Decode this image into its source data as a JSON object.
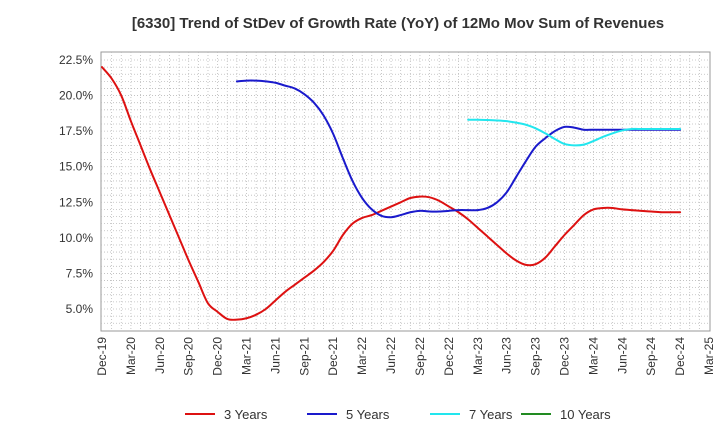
{
  "chart_data": {
    "type": "line",
    "title": "[6330]  Trend of StDev of Growth Rate (YoY) of 12Mo Mov Sum of Revenues",
    "xlabel": "",
    "ylabel": "",
    "ylim": [
      3.6,
      22.5
    ],
    "y_ticks": [
      "5.0%",
      "7.5%",
      "10.0%",
      "12.5%",
      "15.0%",
      "17.5%",
      "20.0%",
      "22.5%"
    ],
    "y_tick_values": [
      5.0,
      7.5,
      10.0,
      12.5,
      15.0,
      17.5,
      20.0,
      22.5
    ],
    "x_ticks": [
      "Dec-19",
      "Mar-20",
      "Jun-20",
      "Sep-20",
      "Dec-20",
      "Mar-21",
      "Jun-21",
      "Sep-21",
      "Dec-21",
      "Mar-22",
      "Jun-22",
      "Sep-22",
      "Dec-22",
      "Mar-23",
      "Jun-23",
      "Sep-23",
      "Dec-23",
      "Mar-24",
      "Jun-24",
      "Sep-24",
      "Dec-24",
      "Mar-25"
    ],
    "x_range_months": [
      0,
      63
    ],
    "grid": true,
    "legend_position": "bottom",
    "series": [
      {
        "name": "3 Years",
        "color": "#dd1111",
        "x": [
          0,
          1,
          2,
          3,
          4,
          5,
          6,
          7,
          8,
          9,
          10,
          11,
          12,
          13,
          14,
          15,
          16,
          17,
          18,
          19,
          20,
          21,
          22,
          23,
          24,
          25,
          26,
          27,
          28,
          29,
          30,
          31,
          32,
          33,
          34,
          35,
          36,
          37,
          38,
          39,
          40,
          41,
          42,
          43,
          44,
          45,
          46,
          47,
          48,
          49,
          50,
          51,
          52,
          53,
          54,
          55,
          56,
          57,
          58,
          59,
          60
        ],
        "values": [
          22.0,
          21.2,
          20.0,
          18.2,
          16.5,
          14.8,
          13.2,
          11.6,
          10.0,
          8.4,
          6.9,
          5.4,
          4.8,
          4.3,
          4.25,
          4.35,
          4.6,
          5.0,
          5.6,
          6.2,
          6.7,
          7.2,
          7.7,
          8.3,
          9.1,
          10.2,
          11.0,
          11.4,
          11.6,
          11.9,
          12.2,
          12.5,
          12.8,
          12.9,
          12.85,
          12.6,
          12.2,
          11.8,
          11.3,
          10.7,
          10.1,
          9.5,
          8.9,
          8.4,
          8.1,
          8.15,
          8.6,
          9.4,
          10.2,
          10.9,
          11.6,
          12.0,
          12.1,
          12.1,
          12.0,
          11.9,
          11.8,
          11.7,
          11.6,
          11.55,
          11.8
        ],
        "line_x": [
          0,
          1,
          2,
          3,
          4,
          5,
          6,
          7,
          8,
          9,
          10,
          11,
          12,
          13,
          14,
          15,
          16,
          17,
          18,
          19,
          20,
          21,
          22,
          23,
          24,
          25,
          26,
          27,
          28,
          29,
          30,
          31,
          32,
          33,
          34,
          35,
          36,
          37,
          38,
          39,
          40,
          41,
          42,
          43,
          44,
          45,
          46,
          47,
          48,
          49,
          50,
          51,
          52,
          53,
          54,
          55,
          60
        ]
      },
      {
        "name": "5 Years",
        "color": "#1a1acc",
        "x": [
          14,
          15,
          16,
          17,
          18,
          19,
          20,
          21,
          22,
          23,
          24,
          25,
          26,
          27,
          28,
          29,
          30,
          31,
          32,
          33,
          34,
          35,
          36,
          37,
          38,
          39,
          40,
          41,
          42,
          43,
          44,
          45,
          46,
          47,
          48,
          49,
          50,
          51,
          52,
          53,
          54,
          55,
          56,
          57,
          58,
          59,
          60
        ],
        "values": [
          21.0,
          21.05,
          21.05,
          21.0,
          20.9,
          20.7,
          20.5,
          20.1,
          19.5,
          18.6,
          17.3,
          15.6,
          14.0,
          12.8,
          12.0,
          11.55,
          11.45,
          11.6,
          11.8,
          11.9,
          11.85,
          11.85,
          11.9,
          11.95,
          11.95,
          11.95,
          12.1,
          12.5,
          13.2,
          14.3,
          15.4,
          16.4,
          17.0,
          17.5,
          17.8,
          17.75,
          17.6,
          17.6,
          17.6,
          17.6,
          17.6,
          17.6,
          17.6,
          17.6,
          17.6,
          17.6,
          17.6
        ]
      },
      {
        "name": "7 Years",
        "color": "#22e6ee",
        "x": [
          38,
          39,
          40,
          41,
          42,
          43,
          44,
          45,
          46,
          47,
          48,
          49,
          50,
          51,
          52,
          53,
          54,
          55,
          56,
          57,
          58,
          59,
          60
        ],
        "values": [
          18.3,
          18.3,
          18.28,
          18.25,
          18.2,
          18.1,
          17.95,
          17.7,
          17.35,
          16.95,
          16.6,
          16.5,
          16.55,
          16.8,
          17.1,
          17.35,
          17.55,
          17.65,
          17.65,
          17.65,
          17.65,
          17.65,
          17.65
        ]
      },
      {
        "name": "10 Years",
        "color": "#228b22",
        "x": [],
        "values": []
      }
    ]
  }
}
